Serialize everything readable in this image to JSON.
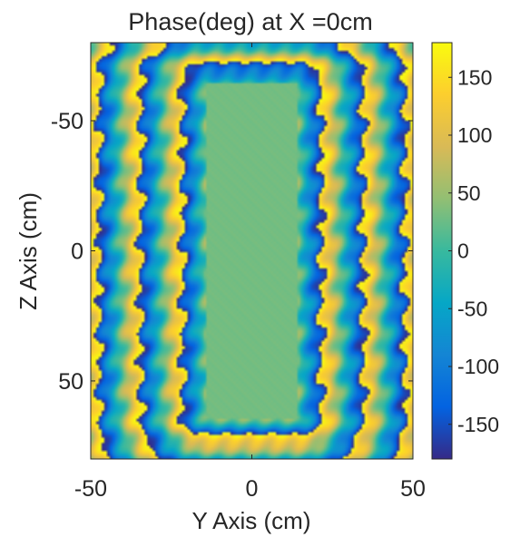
{
  "chart_data": {
    "type": "heatmap",
    "title": "Phase(deg) at X =0cm",
    "xlabel": "Y Axis (cm)",
    "ylabel": "Z Axis (cm)",
    "xlim": [
      -50,
      50
    ],
    "ylim": [
      -80,
      80
    ],
    "y_direction": "reversed",
    "x_ticks": [
      -50,
      0,
      50
    ],
    "x_tick_labels": [
      "-50",
      "0",
      "50"
    ],
    "y_ticks": [
      -50,
      0,
      50
    ],
    "y_tick_labels": [
      "-50",
      "0",
      "50"
    ],
    "colorbar": {
      "limits": [
        -180,
        180
      ],
      "ticks": [
        150,
        100,
        50,
        0,
        -50,
        -100,
        -150
      ],
      "tick_labels": [
        "150",
        "100",
        "50",
        "0",
        "-50",
        "-100",
        "-150"
      ],
      "colormap": "parula",
      "colormap_stops": [
        "#352a87",
        "#0363e1",
        "#1485d4",
        "#06a7c6",
        "#38b99e",
        "#92bf73",
        "#d9ba56",
        "#fcce2e",
        "#f9fb0e"
      ]
    },
    "grid": false,
    "legend": "none",
    "field": {
      "description": "concentric phase rings around a central rounded rectangle",
      "inner_region_half_width": 14,
      "inner_region_half_height": 64,
      "inner_region_phase": 30,
      "phase_period_distance": 13
    }
  }
}
